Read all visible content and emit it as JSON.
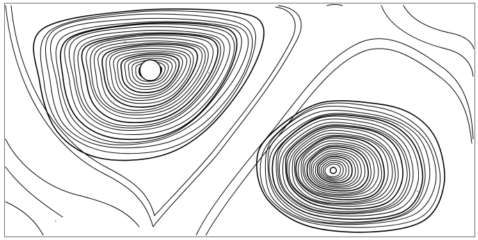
{
  "figure": {
    "type": "streamline-plot",
    "line_color": "#000000",
    "background_color": "#ffffff",
    "frame_color": "#6e6e6e",
    "marker_color": "#cc4444"
  },
  "vortices": [
    {
      "name": "upper-left-vortex",
      "rotation": "clockwise",
      "ring_count": 26
    },
    {
      "name": "lower-right-vortex",
      "rotation": "clockwise",
      "ring_count": 30
    }
  ]
}
